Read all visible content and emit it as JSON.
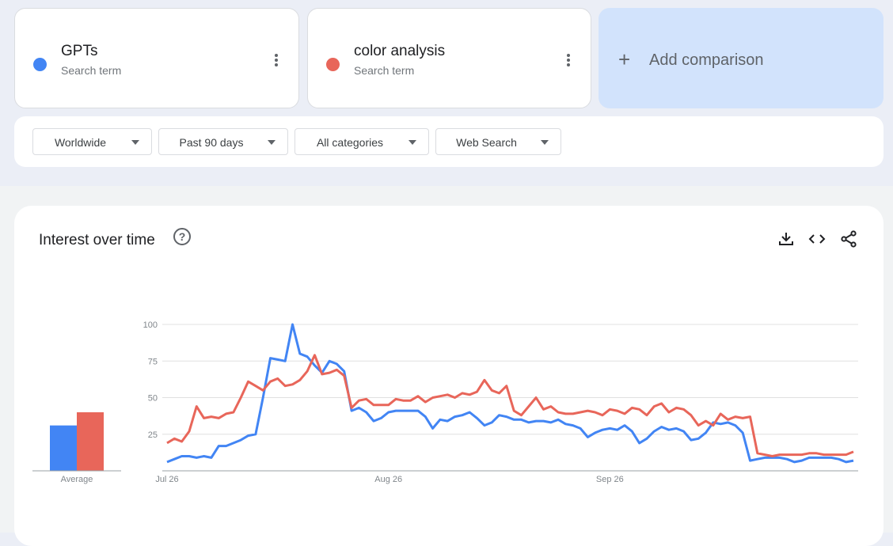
{
  "terms": [
    {
      "name": "GPTs",
      "type_label": "Search term",
      "color": "#4285f4"
    },
    {
      "name": "color analysis",
      "type_label": "Search term",
      "color": "#e8665a"
    }
  ],
  "add_comparison": {
    "label": "Add comparison",
    "icon": "plus-icon"
  },
  "filters": {
    "region": "Worldwide",
    "time_range": "Past 90 days",
    "category": "All categories",
    "search_type": "Web Search"
  },
  "chart_header": {
    "title": "Interest over time",
    "icons": [
      "help-icon",
      "download-icon",
      "embed-code-icon",
      "share-icon"
    ]
  },
  "chart_data": {
    "type": "line",
    "x_labels": [
      "Jul 26",
      "Aug 26",
      "Sep 26"
    ],
    "x_label_index": [
      0,
      30,
      60
    ],
    "ylim": [
      0,
      100
    ],
    "y_ticks": [
      25,
      50,
      75,
      100
    ],
    "grid": true,
    "series": [
      {
        "name": "GPTs",
        "color": "#4285f4",
        "values": [
          6,
          8,
          10,
          10,
          9,
          10,
          9,
          17,
          17,
          19,
          21,
          24,
          25,
          50,
          77,
          76,
          75,
          100,
          80,
          78,
          72,
          67,
          75,
          73,
          68,
          41,
          43,
          40,
          34,
          36,
          40,
          41,
          41,
          41,
          41,
          37,
          29,
          35,
          34,
          37,
          38,
          40,
          36,
          31,
          33,
          38,
          37,
          35,
          35,
          33,
          34,
          34,
          33,
          35,
          32,
          31,
          29,
          23,
          26,
          28,
          29,
          28,
          31,
          27,
          19,
          22,
          27,
          30,
          28,
          29,
          27,
          21,
          22,
          26,
          33,
          32,
          33,
          31,
          26,
          7,
          8,
          9,
          9,
          9,
          8,
          6,
          7,
          9,
          9,
          9,
          9,
          8,
          6,
          7
        ]
      },
      {
        "name": "color analysis",
        "color": "#e8665a",
        "values": [
          19,
          22,
          20,
          27,
          44,
          36,
          37,
          36,
          39,
          40,
          50,
          61,
          58,
          55,
          61,
          63,
          58,
          59,
          62,
          68,
          79,
          66,
          67,
          69,
          65,
          43,
          48,
          49,
          45,
          45,
          45,
          49,
          48,
          48,
          51,
          47,
          50,
          51,
          52,
          50,
          53,
          52,
          54,
          62,
          55,
          53,
          58,
          41,
          38,
          44,
          50,
          42,
          44,
          40,
          39,
          39,
          40,
          41,
          40,
          38,
          42,
          41,
          39,
          43,
          42,
          38,
          44,
          46,
          40,
          43,
          42,
          38,
          31,
          34,
          31,
          39,
          35,
          37,
          36,
          37,
          12,
          11,
          10,
          11,
          11,
          11,
          11,
          12,
          12,
          11,
          11,
          11,
          11,
          13
        ]
      }
    ],
    "average": {
      "label": "Average",
      "values": [
        31,
        40
      ]
    }
  }
}
